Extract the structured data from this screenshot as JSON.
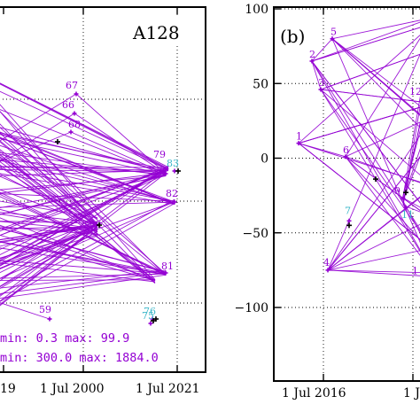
{
  "colors": {
    "line": "#9400d3",
    "label_purple": "#9400d3",
    "label_cyan": "#3bb7c9",
    "marker_black": "#000000"
  },
  "chart_data": [
    {
      "type": "line",
      "panel_label": "A128",
      "x_tick_labels": [
        "19",
        "1 Jul 2000",
        "1 Jul 2021"
      ],
      "stats": [
        "min:  0.3  max:  99.9",
        "min: 300.0  max: 1884.0"
      ],
      "grid": true,
      "point_labels": [
        {
          "text": "67",
          "color": "purple"
        },
        {
          "text": "66",
          "color": "purple"
        },
        {
          "text": "68",
          "color": "purple"
        },
        {
          "text": "59",
          "color": "purple"
        },
        {
          "text": "79",
          "color": "purple"
        },
        {
          "text": "83",
          "color": "cyan"
        },
        {
          "text": "82",
          "color": "purple"
        },
        {
          "text": "81",
          "color": "purple"
        },
        {
          "text": "76",
          "color": "cyan"
        },
        {
          "text": "75",
          "color": "cyan"
        }
      ]
    },
    {
      "type": "line",
      "panel_label": "(b)",
      "ylim": [
        -120,
        100
      ],
      "y_ticks": [
        100,
        50,
        0,
        -50,
        -100
      ],
      "x_tick_labels": [
        "1 Jul 2016",
        "1 J"
      ],
      "grid": true,
      "point_labels": [
        {
          "text": "5",
          "color": "purple",
          "y": 80
        },
        {
          "text": "2",
          "color": "purple",
          "y": 65
        },
        {
          "text": "3",
          "color": "purple",
          "y": 46
        },
        {
          "text": "1",
          "color": "purple",
          "y": 10
        },
        {
          "text": "6",
          "color": "purple",
          "y": 1
        },
        {
          "text": "9",
          "color": "purple",
          "y": -27
        },
        {
          "text": "7",
          "color": "cyan",
          "y": -42
        },
        {
          "text": "4",
          "color": "purple",
          "y": -75
        },
        {
          "text": "12",
          "color": "purple",
          "y": 39
        },
        {
          "text": "11",
          "color": "cyan",
          "y": -33
        },
        {
          "text": "1",
          "color": "purple",
          "y": -79
        }
      ]
    }
  ]
}
